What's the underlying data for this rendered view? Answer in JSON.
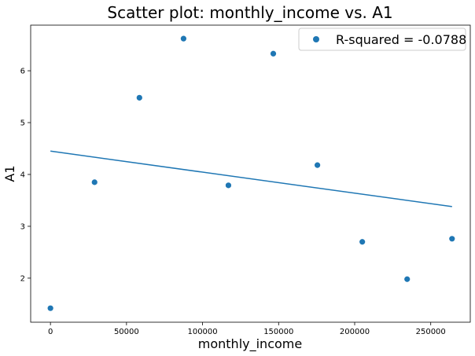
{
  "chart_data": {
    "type": "scatter",
    "title": "Scatter plot: monthly_income vs. A1",
    "xlabel": "monthly_income",
    "ylabel": "A1",
    "xlim": [
      -13000,
      276000
    ],
    "ylim": [
      1.15,
      6.88
    ],
    "xticks": [
      0,
      50000,
      100000,
      150000,
      200000,
      250000
    ],
    "xtick_labels": [
      "0",
      "50000",
      "100000",
      "150000",
      "200000",
      "250000"
    ],
    "yticks": [
      2,
      3,
      4,
      5,
      6
    ],
    "ytick_labels": [
      "2",
      "3",
      "4",
      "5",
      "6"
    ],
    "grid": false,
    "legend_position": "top-right",
    "points": [
      {
        "x": 0,
        "y": 1.42
      },
      {
        "x": 29000,
        "y": 3.85
      },
      {
        "x": 58500,
        "y": 5.48
      },
      {
        "x": 87500,
        "y": 6.62
      },
      {
        "x": 117000,
        "y": 3.79
      },
      {
        "x": 146500,
        "y": 6.33
      },
      {
        "x": 175500,
        "y": 4.18
      },
      {
        "x": 205000,
        "y": 2.7
      },
      {
        "x": 234500,
        "y": 1.98
      },
      {
        "x": 264000,
        "y": 2.76
      }
    ],
    "fit_line": {
      "x": [
        0,
        264000
      ],
      "y": [
        4.45,
        3.38
      ]
    },
    "legend_label": "R-squared = -0.0788",
    "color": "#1f77b4"
  }
}
